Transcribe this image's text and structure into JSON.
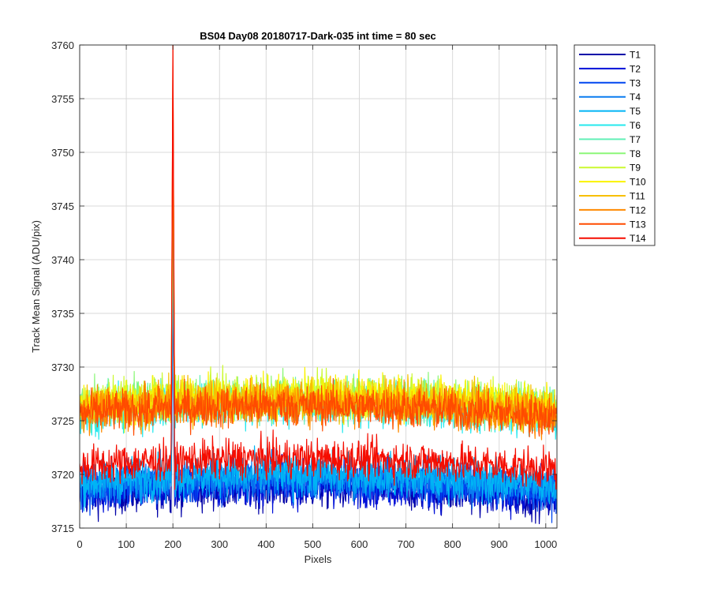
{
  "chart_data": {
    "type": "line",
    "title": "BS04 Day08 20180717-Dark-035 int time = 80 sec",
    "xlabel": "Pixels",
    "ylabel": "Track Mean Signal (ADU/pix)",
    "xlim": [
      0,
      1024
    ],
    "ylim": [
      3715,
      3760
    ],
    "x_ticks": [
      0,
      100,
      200,
      300,
      400,
      500,
      600,
      700,
      800,
      900,
      1000
    ],
    "y_ticks": [
      3715,
      3720,
      3725,
      3730,
      3735,
      3740,
      3745,
      3750,
      3755,
      3760
    ],
    "grid": true,
    "legend_position": "outside-top-right",
    "spike": {
      "x": 200,
      "y_max": 3760
    },
    "series": [
      {
        "name": "T1",
        "color": "#0000a8",
        "mean": 3718.8,
        "noise": 2.0,
        "spike_peak": 3739
      },
      {
        "name": "T2",
        "color": "#0010d8",
        "mean": 3719.0,
        "noise": 2.0,
        "spike_peak": 3739
      },
      {
        "name": "T3",
        "color": "#0046f0",
        "mean": 3719.5,
        "noise": 2.0,
        "spike_peak": 3739
      },
      {
        "name": "T4",
        "color": "#0a7cf0",
        "mean": 3719.8,
        "noise": 2.0,
        "spike_peak": 3740
      },
      {
        "name": "T5",
        "color": "#00b4f5",
        "mean": 3720.0,
        "noise": 2.0,
        "spike_peak": 3741
      },
      {
        "name": "T6",
        "color": "#25e8ee",
        "mean": 3726.5,
        "noise": 2.0,
        "spike_peak": 3742
      },
      {
        "name": "T7",
        "color": "#63f0b7",
        "mean": 3727.0,
        "noise": 2.0,
        "spike_peak": 3742
      },
      {
        "name": "T8",
        "color": "#8cf778",
        "mean": 3727.2,
        "noise": 2.0,
        "spike_peak": 3747
      },
      {
        "name": "T9",
        "color": "#cbf930",
        "mean": 3727.3,
        "noise": 2.0,
        "spike_peak": 3749
      },
      {
        "name": "T10",
        "color": "#fbf300",
        "mean": 3727.3,
        "noise": 2.0,
        "spike_peak": 3752
      },
      {
        "name": "T11",
        "color": "#f7c000",
        "mean": 3727.0,
        "noise": 2.0,
        "spike_peak": 3755
      },
      {
        "name": "T12",
        "color": "#ff8a00",
        "mean": 3726.6,
        "noise": 2.0,
        "spike_peak": 3758
      },
      {
        "name": "T13",
        "color": "#ff4b00",
        "mean": 3726.4,
        "noise": 1.9,
        "spike_peak": 3760
      },
      {
        "name": "T14",
        "color": "#f50d00",
        "mean": 3721.5,
        "noise": 1.8,
        "spike_peak": 3760
      }
    ]
  }
}
